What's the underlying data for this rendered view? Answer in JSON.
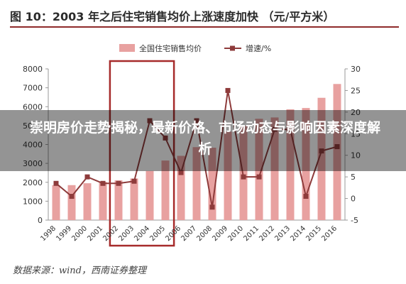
{
  "figure": {
    "title": "图 10：2003 年之后住宅销售均价上涨速度加快 （元/平方米）",
    "source": "数据来源：wind，西南证券整理"
  },
  "overlay": {
    "headline": "崇明房价走势揭秘，最新价格、市场动态与影响因素深度解析"
  },
  "colors": {
    "bar": "#e8a1a0",
    "line": "#8e3b3b",
    "highlight_box": "#a62b2b",
    "title_rule": "#8f2b2b"
  },
  "chart_data": {
    "type": "bar",
    "categories": [
      "1998",
      "1999",
      "2000",
      "2001",
      "2002",
      "2003",
      "2004",
      "2005",
      "2006",
      "2007",
      "2008",
      "2009",
      "2010",
      "2011",
      "2012",
      "2013",
      "2014",
      "2015",
      "2016"
    ],
    "series": [
      {
        "name": "全国住宅销售均价",
        "type": "bar",
        "axis": "left",
        "values": [
          1850,
          1850,
          1950,
          2020,
          2100,
          2200,
          2600,
          3150,
          3400,
          3860,
          3830,
          4680,
          5000,
          5360,
          5430,
          5860,
          5930,
          6470,
          7200
        ]
      },
      {
        "name": "增速/%",
        "type": "line",
        "axis": "right",
        "values": [
          3.5,
          0.5,
          5,
          3.5,
          3.5,
          4,
          18,
          14,
          6,
          18,
          -2,
          25,
          5,
          5,
          16,
          16,
          0.5,
          11,
          12
        ]
      }
    ],
    "left_axis": {
      "min": 0,
      "max": 8000,
      "ticks": [
        "0",
        "1000",
        "2000",
        "3000",
        "4000",
        "5000",
        "6000",
        "7000",
        "8000"
      ]
    },
    "right_axis": {
      "min": -5,
      "max": 30,
      "ticks": [
        "-5",
        "0",
        "5",
        "10",
        "15",
        "20",
        "25",
        "30"
      ]
    },
    "highlight": {
      "from": "2002",
      "to": "2005"
    },
    "legend_position": "top-center",
    "grid": false
  }
}
